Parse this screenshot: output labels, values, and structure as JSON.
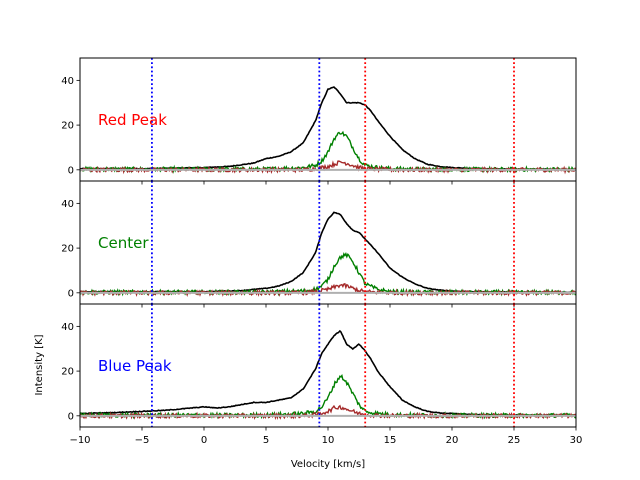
{
  "chart_data": {
    "type": "line",
    "xlabel": "Velocity [km/s]",
    "ylabel": "Intensity [K]",
    "xlim": [
      -10,
      30
    ],
    "x_ticks": [
      -10,
      -5,
      0,
      5,
      10,
      15,
      20,
      25,
      30
    ],
    "y_ticks": [
      0,
      20,
      40
    ],
    "grid": false,
    "vlines": [
      {
        "x": -4.2,
        "color": "#0000ff",
        "style": "dotted"
      },
      {
        "x": 9.3,
        "color": "#0000ff",
        "style": "dotted"
      },
      {
        "x": 13.0,
        "color": "#ff0000",
        "style": "dotted"
      },
      {
        "x": 25.0,
        "color": "#ff0000",
        "style": "dotted"
      }
    ],
    "series_styles": {
      "black": "#000000",
      "green": "#008000",
      "brown": "#a52a2a",
      "gray": "#b0b0b0"
    },
    "panels": [
      {
        "label": "Red Peak",
        "label_color": "#ff0000",
        "ylim": [
          -5,
          50
        ],
        "series": [
          {
            "color": "#000000",
            "x": [
              -10,
              -5,
              0,
              2,
              4,
              5,
              6,
              7,
              8,
              9,
              9.5,
              10,
              10.5,
              11,
              11.5,
              12,
              12.5,
              13,
              13.5,
              14,
              15,
              16,
              17,
              18,
              19,
              20,
              22,
              25,
              30
            ],
            "y": [
              0.5,
              0.5,
              1,
              1.5,
              3,
              5,
              6,
              8,
              12,
              22,
              30,
              36,
              37,
              34,
              30,
              30,
              30,
              29,
              26,
              22,
              15,
              9,
              5,
              2.5,
              1.5,
              1,
              0.5,
              0.3,
              0.2
            ]
          },
          {
            "color": "#008000",
            "x": [
              -10,
              5,
              8,
              9,
              9.5,
              10,
              10.5,
              11,
              11.5,
              12,
              12.5,
              13,
              14,
              15,
              17,
              20,
              30
            ],
            "y": [
              0.3,
              0.3,
              1,
              2,
              4,
              8,
              14,
              17,
              15,
              10,
              5,
              2,
              1,
              0.5,
              0.3,
              0.2,
              0.2
            ]
          },
          {
            "color": "#a52a2a",
            "x": [
              -10,
              8,
              9,
              10,
              10.5,
              11,
              11.5,
              12,
              12.5,
              13,
              14,
              16,
              30
            ],
            "y": [
              0,
              0,
              0.5,
              1.5,
              2.5,
              3.5,
              3,
              2,
              1,
              0.5,
              0.2,
              0,
              0
            ]
          },
          {
            "color": "#b0b0b0",
            "x": [
              -10,
              30
            ],
            "y": [
              0,
              0
            ]
          }
        ]
      },
      {
        "label": "Center",
        "label_color": "#008000",
        "ylim": [
          -5,
          50
        ],
        "series": [
          {
            "color": "#000000",
            "x": [
              -10,
              -5,
              0,
              3,
              5,
              6,
              7,
              8,
              9,
              9.5,
              10,
              10.5,
              11,
              11.5,
              12,
              12.5,
              13,
              14,
              15,
              16,
              17,
              18,
              19,
              20,
              22,
              25,
              30
            ],
            "y": [
              0.5,
              0.5,
              0.5,
              1,
              2,
              3,
              5,
              9,
              18,
              27,
              33,
              36,
              35,
              31,
              28,
              27,
              24,
              18,
              11,
              7,
              4,
              2,
              1.2,
              0.8,
              0.5,
              0.3,
              0.2
            ]
          },
          {
            "color": "#008000",
            "x": [
              -10,
              5,
              8,
              9,
              9.5,
              10,
              10.5,
              11,
              11.5,
              12,
              12.5,
              13,
              14,
              15,
              17,
              20,
              30
            ],
            "y": [
              0.3,
              0.3,
              0.8,
              1.5,
              3,
              6,
              12,
              16,
              17,
              14,
              9,
              4,
              1.5,
              0.5,
              0.3,
              0.2,
              0.2
            ]
          },
          {
            "color": "#a52a2a",
            "x": [
              -10,
              8,
              9,
              10,
              10.5,
              11,
              11.5,
              12,
              12.5,
              13,
              14,
              16,
              30
            ],
            "y": [
              0,
              0,
              0.5,
              1.5,
              2.5,
              3.5,
              3,
              2,
              1,
              0.5,
              0.2,
              0,
              0
            ]
          },
          {
            "color": "#b0b0b0",
            "x": [
              -10,
              30
            ],
            "y": [
              0,
              0
            ]
          }
        ]
      },
      {
        "label": "Blue Peak",
        "label_color": "#0000ff",
        "ylim": [
          -5,
          50
        ],
        "series": [
          {
            "color": "#000000",
            "x": [
              -10,
              -7,
              -5,
              -3,
              -1,
              0,
              1,
              2,
              3,
              4,
              5,
              6,
              7,
              8,
              9,
              9.5,
              10,
              10.5,
              11,
              11.5,
              12,
              12.5,
              13,
              13.5,
              14,
              15,
              16,
              17,
              18,
              19,
              20,
              22,
              25,
              30
            ],
            "y": [
              1,
              1.5,
              2,
              2.5,
              3.5,
              4,
              3.5,
              4,
              5,
              6,
              6,
              7,
              8,
              12,
              21,
              28,
              32,
              36,
              38,
              32,
              30,
              32,
              29,
              25,
              20,
              13,
              7,
              4,
              2,
              1.3,
              1,
              0.5,
              0.3,
              0.2
            ]
          },
          {
            "color": "#008000",
            "x": [
              -10,
              5,
              8,
              9,
              9.5,
              10,
              10.5,
              11,
              11.5,
              12,
              12.5,
              13,
              14,
              15,
              17,
              20,
              30
            ],
            "y": [
              0.3,
              0.3,
              1,
              2,
              4,
              8,
              14,
              18,
              15,
              10,
              5,
              2,
              1,
              0.5,
              0.3,
              0.2,
              0.2
            ]
          },
          {
            "color": "#a52a2a",
            "x": [
              -10,
              8,
              9,
              10,
              10.5,
              11,
              11.5,
              12,
              12.5,
              13,
              14,
              16,
              30
            ],
            "y": [
              0,
              0,
              0.5,
              2,
              3.5,
              4,
              3,
              2,
              1,
              0.5,
              0.2,
              0,
              0
            ]
          },
          {
            "color": "#b0b0b0",
            "x": [
              -10,
              30
            ],
            "y": [
              0,
              0
            ]
          }
        ]
      }
    ]
  }
}
